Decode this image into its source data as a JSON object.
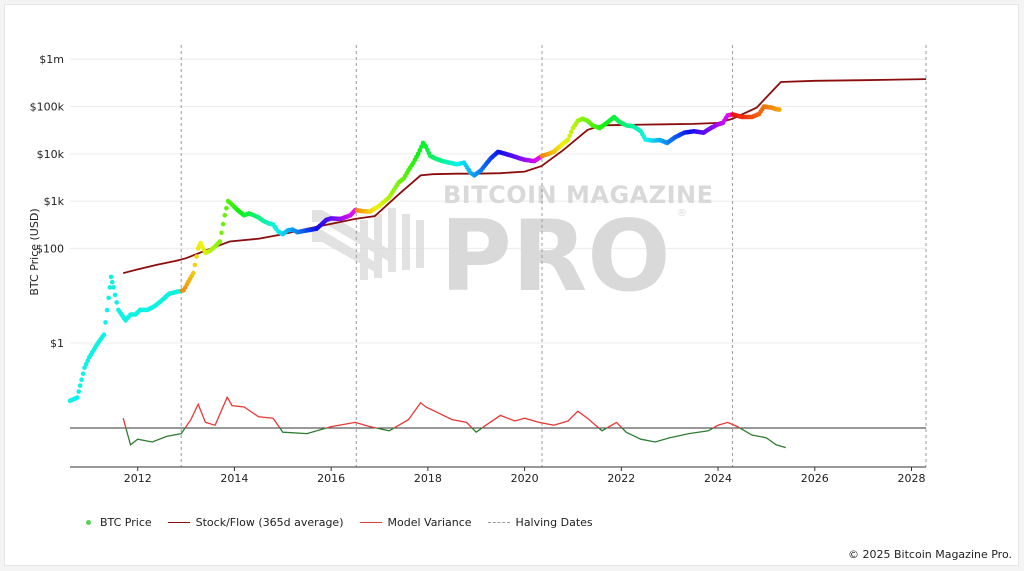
{
  "chart_data": {
    "type": "line",
    "xlabel": "",
    "ylabel": "BTC Price (USD)",
    "yscale": "log",
    "x_range": [
      2010.6,
      2028.3
    ],
    "y_range_price": [
      0.03,
      2000000
    ],
    "x_ticks": [
      "2012",
      "2014",
      "2016",
      "2018",
      "2020",
      "2022",
      "2024",
      "2026",
      "2028"
    ],
    "x_tick_values": [
      2012,
      2014,
      2016,
      2018,
      2020,
      2022,
      2024,
      2026,
      2028
    ],
    "y_ticks": [
      "$1",
      "$100",
      "$1k",
      "$10k",
      "$100k",
      "$1m"
    ],
    "y_tick_values": [
      1,
      100,
      1000,
      10000,
      100000,
      1000000
    ],
    "grid": true,
    "legend_position": "bottom-left",
    "halving_dates": [
      2012.9,
      2016.52,
      2020.36,
      2024.3
    ],
    "variance_baseline": 0,
    "series": [
      {
        "name": "BTC Price",
        "kind": "scatter-colored",
        "x": [
          2010.6,
          2010.75,
          2010.9,
          2011.0,
          2011.15,
          2011.3,
          2011.4,
          2011.45,
          2011.5,
          2011.6,
          2011.75,
          2011.85,
          2011.95,
          2012.05,
          2012.2,
          2012.35,
          2012.5,
          2012.65,
          2012.8,
          2012.95,
          2013.05,
          2013.15,
          2013.25,
          2013.3,
          2013.4,
          2013.5,
          2013.6,
          2013.7,
          2013.8,
          2013.87,
          2013.92,
          2014.0,
          2014.1,
          2014.2,
          2014.3,
          2014.4,
          2014.5,
          2014.6,
          2014.7,
          2014.8,
          2014.9,
          2015.0,
          2015.1,
          2015.2,
          2015.3,
          2015.5,
          2015.7,
          2015.9,
          2016.0,
          2016.2,
          2016.4,
          2016.5,
          2016.6,
          2016.8,
          2017.0,
          2017.2,
          2017.4,
          2017.5,
          2017.6,
          2017.7,
          2017.8,
          2017.9,
          2017.96,
          2018.05,
          2018.15,
          2018.3,
          2018.45,
          2018.6,
          2018.75,
          2018.88,
          2018.96,
          2019.1,
          2019.3,
          2019.45,
          2019.6,
          2019.75,
          2019.9,
          2020.0,
          2020.2,
          2020.36,
          2020.5,
          2020.6,
          2020.75,
          2020.9,
          2021.0,
          2021.1,
          2021.2,
          2021.3,
          2021.4,
          2021.55,
          2021.7,
          2021.85,
          2021.95,
          2022.1,
          2022.25,
          2022.4,
          2022.5,
          2022.65,
          2022.8,
          2022.95,
          2023.1,
          2023.3,
          2023.5,
          2023.7,
          2023.85,
          2024.0,
          2024.1,
          2024.2,
          2024.3,
          2024.5,
          2024.7,
          2024.85,
          2024.95,
          2025.1,
          2025.2,
          2025.3
        ],
        "y": [
          0.06,
          0.07,
          0.3,
          0.5,
          0.9,
          1.5,
          9,
          25,
          15,
          5,
          3,
          4,
          4,
          5,
          5,
          6,
          8,
          11,
          12,
          13,
          20,
          30,
          100,
          130,
          80,
          90,
          110,
          140,
          500,
          1000,
          900,
          750,
          600,
          500,
          550,
          500,
          450,
          380,
          340,
          320,
          230,
          200,
          240,
          250,
          220,
          240,
          260,
          400,
          430,
          420,
          500,
          650,
          620,
          600,
          800,
          1200,
          2500,
          3000,
          4500,
          6500,
          10000,
          17000,
          14000,
          9000,
          8000,
          7000,
          6500,
          6000,
          6500,
          4000,
          3500,
          4500,
          8000,
          11000,
          10000,
          9000,
          8000,
          7500,
          7000,
          9000,
          10000,
          11000,
          15000,
          20000,
          35000,
          50000,
          55000,
          50000,
          40000,
          35000,
          45000,
          60000,
          48000,
          40000,
          38000,
          30000,
          20000,
          19000,
          19500,
          17000,
          22000,
          28000,
          30000,
          28000,
          35000,
          42000,
          45000,
          65000,
          68000,
          60000,
          60000,
          70000,
          100000,
          95000,
          88000,
          85000
        ]
      },
      {
        "name": "Stock/Flow (365d average)",
        "x": [
          2011.7,
          2012.0,
          2012.4,
          2012.8,
          2013.0,
          2013.4,
          2013.9,
          2014.5,
          2015.0,
          2015.5,
          2016.0,
          2016.5,
          2016.9,
          2017.4,
          2017.85,
          2018.1,
          2018.6,
          2019.0,
          2019.5,
          2020.0,
          2020.35,
          2020.8,
          2021.3,
          2021.6,
          2022.2,
          2022.9,
          2023.5,
          2024.0,
          2024.3,
          2024.8,
          2025.3,
          2026.0,
          2027.0,
          2028.3
        ],
        "y": [
          30,
          36,
          45,
          55,
          62,
          90,
          140,
          160,
          200,
          260,
          330,
          420,
          480,
          1400,
          3500,
          3700,
          3800,
          3800,
          3900,
          4200,
          5500,
          12000,
          32000,
          40000,
          41000,
          42000,
          43000,
          45000,
          55000,
          95000,
          330000,
          350000,
          360000,
          380000
        ]
      },
      {
        "name": "Model Variance",
        "x": [
          2011.7,
          2011.85,
          2012.0,
          2012.3,
          2012.6,
          2012.9,
          2013.1,
          2013.25,
          2013.4,
          2013.6,
          2013.85,
          2013.95,
          2014.2,
          2014.5,
          2014.8,
          2015.0,
          2015.5,
          2016.0,
          2016.5,
          2016.8,
          2017.2,
          2017.6,
          2017.85,
          2017.96,
          2018.2,
          2018.5,
          2018.8,
          2019.0,
          2019.2,
          2019.5,
          2019.8,
          2020.0,
          2020.3,
          2020.6,
          2020.9,
          2021.1,
          2021.3,
          2021.6,
          2021.9,
          2022.1,
          2022.4,
          2022.7,
          2023.0,
          2023.4,
          2023.8,
          2024.0,
          2024.2,
          2024.4,
          2024.7,
          2025.0,
          2025.2,
          2025.4
        ],
        "y": [
          0.35,
          -0.6,
          -0.4,
          -0.5,
          -0.3,
          -0.2,
          0.3,
          0.85,
          0.2,
          0.1,
          1.1,
          0.8,
          0.75,
          0.4,
          0.35,
          -0.15,
          -0.2,
          0.05,
          0.2,
          0.05,
          -0.1,
          0.3,
          0.9,
          0.75,
          0.55,
          0.3,
          0.2,
          -0.15,
          0.1,
          0.45,
          0.25,
          0.35,
          0.2,
          0.1,
          0.25,
          0.6,
          0.35,
          -0.1,
          0.2,
          -0.15,
          -0.4,
          -0.5,
          -0.35,
          -0.2,
          -0.1,
          0.1,
          0.2,
          0.05,
          -0.25,
          -0.35,
          -0.6,
          -0.7
        ]
      },
      {
        "name": "Halving Dates",
        "kind": "vertical-dashed",
        "values": [
          2012.9,
          2016.52,
          2020.36,
          2024.3
        ]
      }
    ]
  },
  "legend": [
    {
      "label": "BTC Price",
      "swatch": "dot",
      "color": "#5ad15a"
    },
    {
      "label": "Stock/Flow (365d average)",
      "swatch": "line",
      "color": "#8b0d0d"
    },
    {
      "label": "Model Variance",
      "swatch": "line",
      "color": "#e53935"
    },
    {
      "label": "Halving Dates",
      "swatch": "dash",
      "color": "#9a9a9a"
    }
  ],
  "colors": {
    "stock_flow": "#8b0d0d",
    "variance_positive": "#e53935",
    "variance_negative": "#2e7d32",
    "grid": "#ececec",
    "axis": "#333333"
  },
  "watermark": {
    "line1": "BITCOIN MAGAZINE",
    "line2": "PRO",
    "mark": "®"
  },
  "copyright": "© 2025 Bitcoin Magazine Pro."
}
